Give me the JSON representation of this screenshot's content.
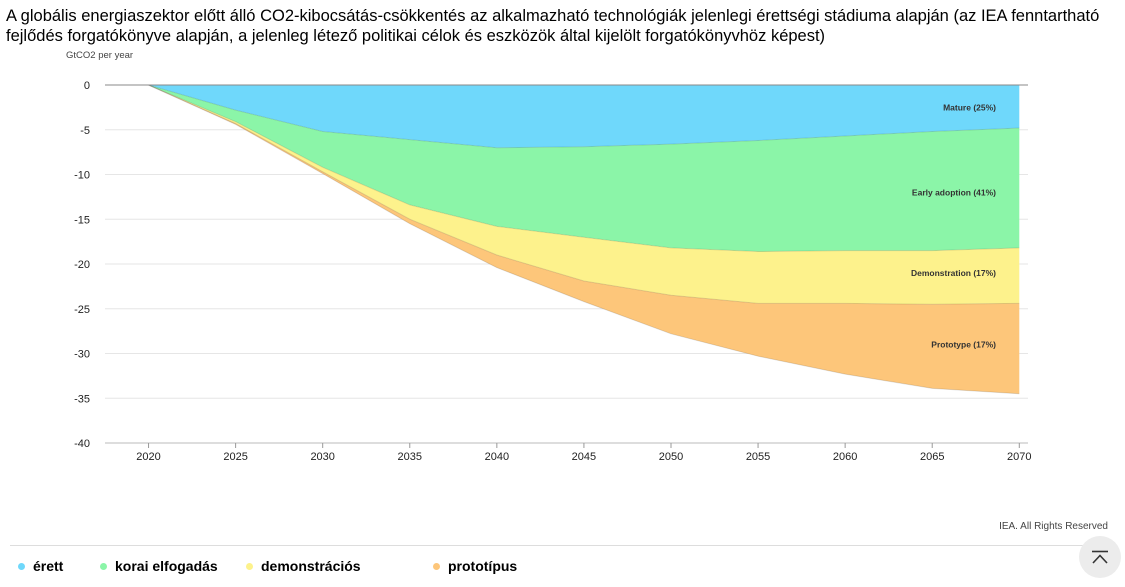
{
  "title": "A globális energiaszektor előtt álló CO2-kibocsátás-csökkentés az alkalmazható technológiák jelenlegi érettségi stádiuma alapján (az IEA fenntartható fejlődés forgatókönyve alapján, a jelenleg létező politikai célok és eszközök által kijelölt forgatókönyvhöz képest)",
  "credit": "IEA. All Rights Reserved",
  "icons": {
    "scroll_top": "scroll-to-top-icon"
  },
  "chart_data": {
    "type": "area",
    "stacked": true,
    "ylabel": "GtCO2 per year",
    "xlabel": "",
    "ylim": [
      -40,
      0
    ],
    "yticks": [
      0,
      -5,
      -10,
      -15,
      -20,
      -25,
      -30,
      -35,
      -40
    ],
    "xlim": [
      2017.5,
      2070.5
    ],
    "xticks": [
      2020,
      2025,
      2030,
      2035,
      2040,
      2045,
      2050,
      2055,
      2060,
      2065,
      2070
    ],
    "grid": true,
    "legend_position": "bottom",
    "x": [
      2017.5,
      2020,
      2025,
      2030,
      2035,
      2040,
      2045,
      2050,
      2055,
      2060,
      2065,
      2070
    ],
    "series": [
      {
        "name": "érett",
        "label": "Mature (25%)",
        "color": "#6fd8fb",
        "values": [
          0,
          0,
          -2.8,
          -5.2,
          -6.1,
          -7.0,
          -6.9,
          -6.6,
          -6.2,
          -5.7,
          -5.2,
          -4.8
        ]
      },
      {
        "name": "korai elfogadás",
        "label": "Early adoption (41%)",
        "color": "#8bf5a8",
        "values": [
          0,
          0,
          -1.3,
          -4.0,
          -7.3,
          -8.8,
          -10.1,
          -11.6,
          -12.4,
          -12.8,
          -13.3,
          -13.4
        ]
      },
      {
        "name": "demonstrációs",
        "label": "Demonstration (17%)",
        "color": "#fdf28c",
        "values": [
          0,
          0,
          -0.2,
          -0.5,
          -1.6,
          -3.2,
          -4.9,
          -5.3,
          -5.8,
          -5.9,
          -6.0,
          -6.2
        ]
      },
      {
        "name": "prototípus",
        "label": "Prototype (17%)",
        "color": "#fdc67a",
        "values": [
          0,
          0,
          -0.1,
          -0.2,
          -0.5,
          -1.4,
          -2.3,
          -4.3,
          -5.9,
          -7.9,
          -9.4,
          -10.1
        ]
      }
    ]
  }
}
